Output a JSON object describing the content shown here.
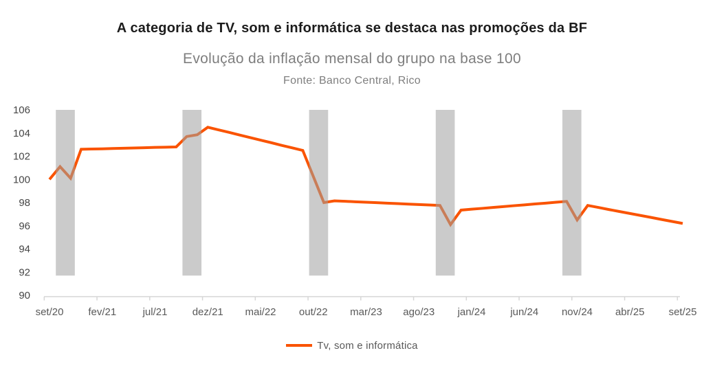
{
  "chart_data": {
    "type": "line",
    "title": "A categoria de TV, som e informática se destaca nas promoções da BF",
    "subtitle": "Evolução da inflação mensal do grupo na base 100",
    "source": "Fonte: Banco Central, Rico",
    "xlabel": "",
    "ylabel": "",
    "ylim": [
      90,
      106
    ],
    "y_ticks": [
      90,
      92,
      94,
      96,
      98,
      100,
      102,
      104,
      106
    ],
    "grid": false,
    "legend_position": "bottom",
    "x": [
      "set/20",
      "out/20",
      "nov/20",
      "dez/20",
      "jan/21",
      "fev/21",
      "mar/21",
      "abr/21",
      "mai/21",
      "jun/21",
      "jul/21",
      "ago/21",
      "set/21",
      "out/21",
      "nov/21",
      "dez/21",
      "jan/22",
      "fev/22",
      "mar/22",
      "abr/22",
      "mai/22",
      "jun/22",
      "jul/22",
      "ago/22",
      "set/22",
      "out/22",
      "nov/22",
      "dez/22",
      "jan/23",
      "fev/23",
      "mar/23",
      "abr/23",
      "mai/23",
      "jun/23",
      "jul/23",
      "ago/23",
      "set/23",
      "out/23",
      "nov/23",
      "dez/23",
      "jan/24",
      "fev/24",
      "mar/24",
      "abr/24",
      "mai/24",
      "jun/24",
      "jul/24",
      "ago/24",
      "set/24",
      "out/24",
      "nov/24",
      "dez/24",
      "jan/25",
      "fev/25",
      "mar/25",
      "abr/25",
      "mai/25",
      "jun/25",
      "jul/25",
      "ago/25",
      "set/25"
    ],
    "x_axis_tick_labels": [
      "set/20",
      "fev/21",
      "jul/21",
      "dez/21",
      "mai/22",
      "out/22",
      "mar/23",
      "ago/23",
      "jan/24",
      "jun/24",
      "nov/24",
      "abr/25",
      "set/25"
    ],
    "series": [
      {
        "name": "Tv, som e informática",
        "color": "#FA5300",
        "values": [
          100,
          101.1,
          100.1,
          102.6,
          102.62,
          102.64,
          102.67,
          102.69,
          102.71,
          102.73,
          102.76,
          102.78,
          102.8,
          103.7,
          103.85,
          104.5,
          104.28,
          104.06,
          103.83,
          103.61,
          103.39,
          103.17,
          102.94,
          102.72,
          102.5,
          100.25,
          98,
          98.15,
          98.11,
          98.07,
          98.03,
          97.99,
          97.95,
          97.91,
          97.87,
          97.83,
          97.79,
          97.75,
          96.1,
          97.35,
          97.43,
          97.5,
          97.58,
          97.65,
          97.73,
          97.8,
          97.88,
          97.95,
          98.03,
          98.1,
          96.5,
          97.75,
          97.58,
          97.4,
          97.23,
          97.06,
          96.89,
          96.72,
          96.54,
          96.37,
          96.2
        ]
      }
    ],
    "highlight_bands": {
      "color": "rgba(160,160,160,0.55)",
      "value_top": 106,
      "value_bottom": 91.7,
      "ranges": [
        {
          "from": "out/20",
          "to": "nov/20"
        },
        {
          "from": "out/21",
          "to": "nov/21"
        },
        {
          "from": "out/22",
          "to": "nov/22"
        },
        {
          "from": "out/23",
          "to": "nov/23"
        },
        {
          "from": "out/24",
          "to": "nov/24"
        }
      ]
    },
    "style_colors": {
      "title_text": "#1C1C1C",
      "subtitle_text": "#7E7E7E",
      "axis_line": "#D6D6D6",
      "x_tick_labels": "#595959",
      "y_tick_labels": "#454545"
    }
  }
}
